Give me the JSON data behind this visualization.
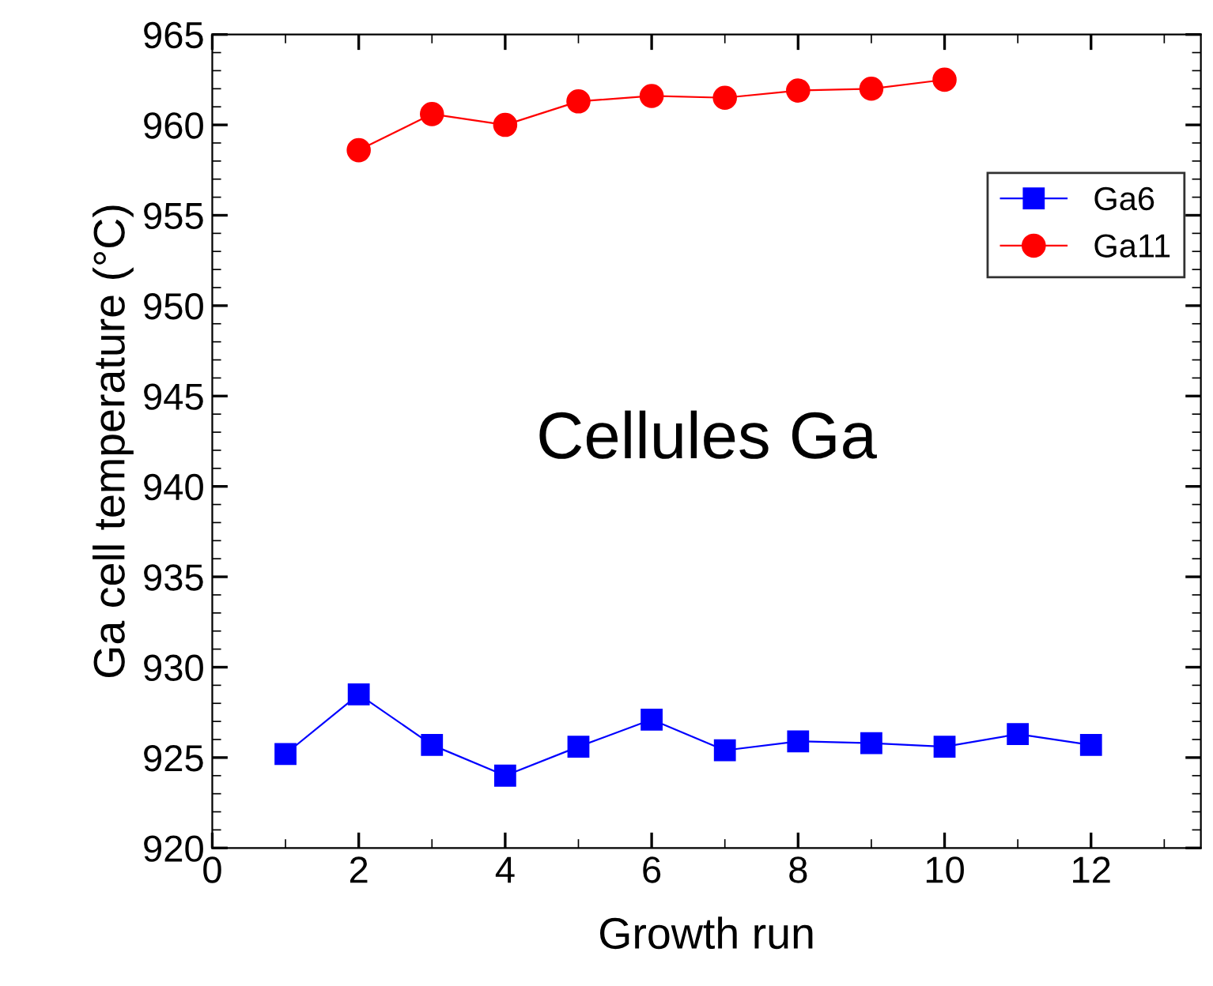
{
  "chart_data": {
    "type": "line",
    "xlabel": "Growth run",
    "ylabel": "Ga cell temperature (°C)",
    "annotations": [
      "Cellules Ga"
    ],
    "xlim": [
      0,
      13.5
    ],
    "xticks": [
      0,
      2,
      4,
      6,
      8,
      10,
      12
    ],
    "ylim": [
      920,
      965
    ],
    "yticks": [
      920,
      925,
      930,
      935,
      940,
      945,
      950,
      955,
      960,
      965
    ],
    "grid": false,
    "legend": "top right",
    "series": [
      {
        "name": "Ga6",
        "color": "#0000ff",
        "marker": "square",
        "x": [
          1,
          2,
          3,
          4,
          5,
          6,
          7,
          8,
          9,
          10,
          11,
          12
        ],
        "values": [
          925.2,
          928.5,
          925.7,
          924.0,
          925.6,
          927.1,
          925.4,
          925.9,
          925.8,
          925.6,
          926.3,
          925.7
        ]
      },
      {
        "name": "Ga11",
        "color": "#ff0000",
        "marker": "circle",
        "x": [
          2,
          3,
          4,
          5,
          6,
          7,
          8,
          9,
          10
        ],
        "values": [
          958.6,
          960.6,
          960.0,
          961.3,
          961.6,
          961.5,
          961.9,
          962.0,
          962.5
        ]
      }
    ]
  }
}
